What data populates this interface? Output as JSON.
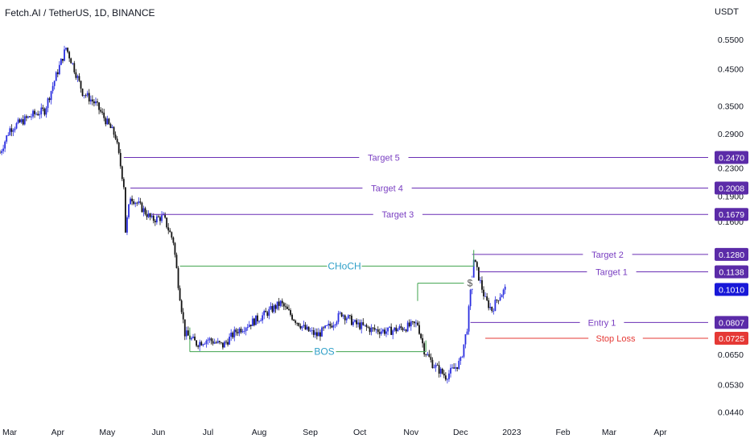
{
  "header": {
    "symbol_title": "Fetch.AI / TetherUS, 1D, BINANCE",
    "currency": "USDT"
  },
  "colors": {
    "up": "#2a2ee0",
    "down": "#111111",
    "level_line": "#6a2fb5",
    "level_text": "#7a3fc2",
    "structure_line": "#3fa34d",
    "structure_text": "#2fa0c8",
    "stop_line": "#e53935",
    "current_price_badge": "#1818d8",
    "stop_badge": "#e53935",
    "axis_text": "#131722"
  },
  "chart_data": {
    "type": "candlestick",
    "title": "Fetch.AI / TetherUS, 1D, BINANCE",
    "xlabel": "",
    "ylabel": "USDT",
    "y_scale": "log",
    "ylim": [
      0.042,
      0.61
    ],
    "x_range": [
      "2022-02-25",
      "2023-04-30"
    ],
    "x_ticks": [
      "Mar",
      "Apr",
      "May",
      "Jun",
      "Jul",
      "Aug",
      "Sep",
      "Oct",
      "Nov",
      "Dec",
      "2023",
      "Feb",
      "Mar",
      "Apr"
    ],
    "y_ticks": [
      0.55,
      0.45,
      0.35,
      0.29,
      0.23,
      0.19,
      0.16,
      0.065,
      0.053,
      0.044
    ],
    "grid": false,
    "current_price": 0.101,
    "price_path_approx": [
      [
        "2022-02-25",
        0.255
      ],
      [
        "2022-03-03",
        0.3
      ],
      [
        "2022-03-10",
        0.315
      ],
      [
        "2022-03-17",
        0.33
      ],
      [
        "2022-03-24",
        0.34
      ],
      [
        "2022-03-31",
        0.43
      ],
      [
        "2022-04-06",
        0.52
      ],
      [
        "2022-04-10",
        0.465
      ],
      [
        "2022-04-16",
        0.385
      ],
      [
        "2022-04-24",
        0.355
      ],
      [
        "2022-04-30",
        0.318
      ],
      [
        "2022-05-06",
        0.285
      ],
      [
        "2022-05-11",
        0.205
      ],
      [
        "2022-05-12",
        0.15
      ],
      [
        "2022-05-15",
        0.19
      ],
      [
        "2022-05-22",
        0.175
      ],
      [
        "2022-05-28",
        0.162
      ],
      [
        "2022-06-04",
        0.165
      ],
      [
        "2022-06-10",
        0.14
      ],
      [
        "2022-06-13",
        0.105
      ],
      [
        "2022-06-17",
        0.075
      ],
      [
        "2022-06-24",
        0.07
      ],
      [
        "2022-07-01",
        0.072
      ],
      [
        "2022-07-10",
        0.069
      ],
      [
        "2022-07-18",
        0.076
      ],
      [
        "2022-07-26",
        0.08
      ],
      [
        "2022-08-04",
        0.085
      ],
      [
        "2022-08-14",
        0.092
      ],
      [
        "2022-08-22",
        0.083
      ],
      [
        "2022-08-29",
        0.077
      ],
      [
        "2022-09-05",
        0.074
      ],
      [
        "2022-09-13",
        0.079
      ],
      [
        "2022-09-20",
        0.086
      ],
      [
        "2022-09-28",
        0.08
      ],
      [
        "2022-10-08",
        0.077
      ],
      [
        "2022-10-18",
        0.076
      ],
      [
        "2022-10-28",
        0.078
      ],
      [
        "2022-11-05",
        0.08
      ],
      [
        "2022-11-09",
        0.067
      ],
      [
        "2022-11-14",
        0.061
      ],
      [
        "2022-11-22",
        0.056
      ],
      [
        "2022-11-27",
        0.059
      ],
      [
        "2022-12-01",
        0.062
      ],
      [
        "2022-12-05",
        0.078
      ],
      [
        "2022-12-09",
        0.124
      ],
      [
        "2022-12-12",
        0.11
      ],
      [
        "2022-12-16",
        0.094
      ],
      [
        "2022-12-20",
        0.088
      ],
      [
        "2022-12-24",
        0.096
      ],
      [
        "2022-12-28",
        0.101
      ]
    ],
    "levels": [
      {
        "label": "Target 5",
        "value": 0.247,
        "badge": "0.2470"
      },
      {
        "label": "Target 4",
        "value": 0.2008,
        "badge": "0.2008"
      },
      {
        "label": "Target 3",
        "value": 0.1679,
        "badge": "0.1679"
      },
      {
        "label": "Target 2",
        "value": 0.128,
        "badge": "0.1280"
      },
      {
        "label": "Target 1",
        "value": 0.1138,
        "badge": "0.1138"
      },
      {
        "label": "Entry 1",
        "value": 0.0807,
        "badge": "0.0807"
      },
      {
        "label": "Stop Loss",
        "value": 0.0725,
        "badge": "0.0725"
      }
    ],
    "current_price_badge": "0.1010",
    "structure_labels": [
      {
        "label": "CHoCH",
        "value": 0.1183
      },
      {
        "label": "BOS",
        "value": 0.0662
      },
      {
        "label": "$",
        "value": 0.1053
      }
    ]
  }
}
